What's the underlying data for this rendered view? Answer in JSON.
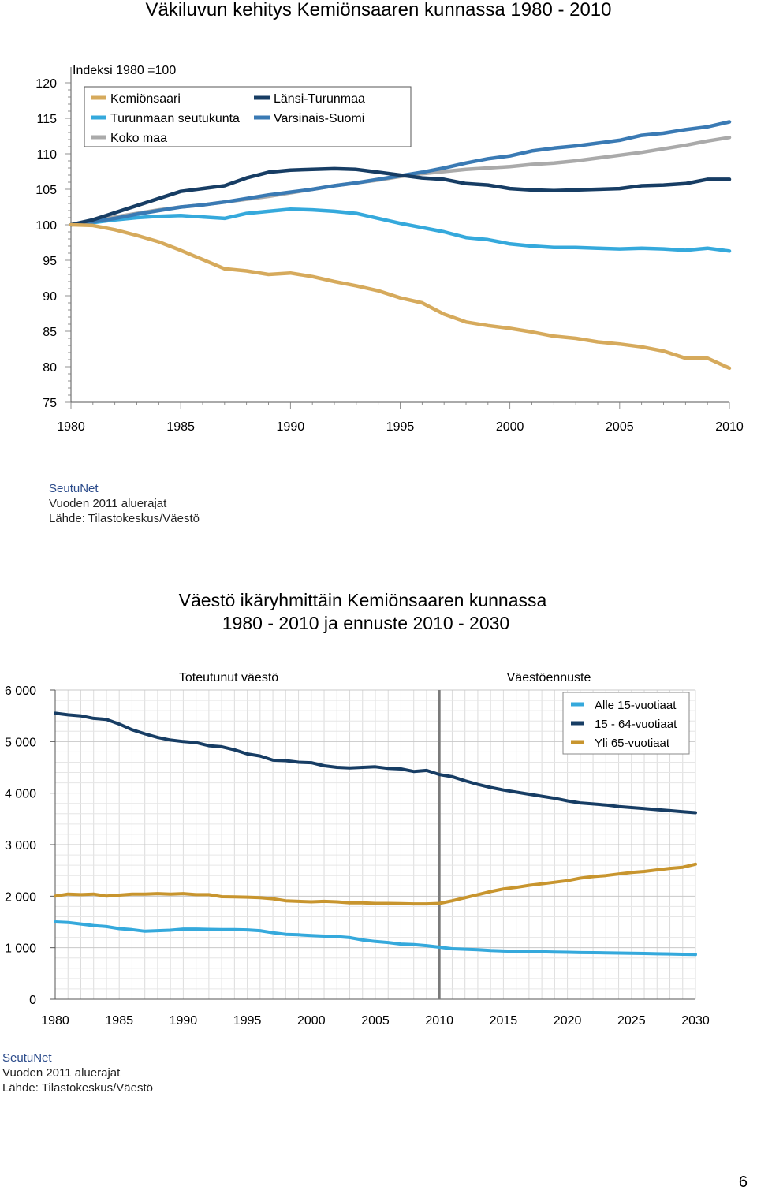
{
  "page_number": "6",
  "chart1": {
    "source": [
      "SeutuNet",
      "Vuoden 2011 aluerajat",
      "Lähde: Tilastokeskus/Väestö"
    ]
  },
  "chart2": {
    "source": [
      "SeutuNet",
      "Vuoden 2011 aluerajat",
      "Lähde: Tilastokeskus/Väestö"
    ]
  },
  "chart_data": [
    {
      "type": "line",
      "title": "Väkiluvun kehitys Kemiönsaaren kunnassa 1980 - 2010",
      "subtitle": "Indeksi 1980 =100",
      "xlim": [
        1980,
        2010
      ],
      "ylim": [
        75,
        120
      ],
      "x_ticks": [
        "1980",
        "1985",
        "1990",
        "1995",
        "2000",
        "2005",
        "2010"
      ],
      "y_ticks": [
        "75",
        "80",
        "85",
        "90",
        "95",
        "100",
        "105",
        "110",
        "115",
        "120"
      ],
      "grid": false,
      "legend_position": "top-left",
      "x": [
        1980,
        1981,
        1982,
        1983,
        1984,
        1985,
        1986,
        1987,
        1988,
        1989,
        1990,
        1991,
        1992,
        1993,
        1994,
        1995,
        1996,
        1997,
        1998,
        1999,
        2000,
        2001,
        2002,
        2003,
        2004,
        2005,
        2006,
        2007,
        2008,
        2009,
        2010
      ],
      "series": [
        {
          "name": "Kemiönsaari",
          "color": "#d6aa5c",
          "legend_col": 0,
          "legend_row": 0,
          "values": [
            100,
            99.9,
            99.3,
            98.5,
            97.6,
            96.4,
            95.1,
            93.8,
            93.5,
            93.0,
            93.2,
            92.7,
            92.0,
            91.4,
            90.7,
            89.7,
            89.0,
            87.4,
            86.3,
            85.8,
            85.4,
            84.9,
            84.3,
            84.0,
            83.5,
            83.2,
            82.8,
            82.2,
            81.2,
            81.2,
            79.8
          ]
        },
        {
          "name": "Turunmaan seutukunta",
          "color": "#35a9dc",
          "legend_col": 0,
          "legend_row": 1,
          "values": [
            100,
            100.3,
            100.7,
            101.0,
            101.2,
            101.3,
            101.1,
            100.9,
            101.6,
            101.9,
            102.2,
            102.1,
            101.9,
            101.6,
            100.9,
            100.2,
            99.6,
            99.0,
            98.2,
            97.9,
            97.3,
            97.0,
            96.8,
            96.8,
            96.7,
            96.6,
            96.7,
            96.6,
            96.4,
            96.7,
            96.3
          ]
        },
        {
          "name": "Koko maa",
          "color": "#aaaaaa",
          "legend_col": 0,
          "legend_row": 2,
          "values": [
            100,
            100.6,
            101.1,
            101.6,
            102.1,
            102.5,
            102.8,
            103.2,
            103.6,
            104.0,
            104.5,
            105.0,
            105.5,
            105.9,
            106.3,
            106.8,
            107.2,
            107.5,
            107.8,
            108.0,
            108.2,
            108.5,
            108.7,
            109.0,
            109.4,
            109.8,
            110.2,
            110.7,
            111.2,
            111.8,
            112.3
          ]
        },
        {
          "name": "Länsi-Turunmaa",
          "color": "#173d64",
          "legend_col": 1,
          "legend_row": 0,
          "values": [
            100,
            100.7,
            101.7,
            102.7,
            103.7,
            104.7,
            105.1,
            105.5,
            106.6,
            107.4,
            107.7,
            107.8,
            107.9,
            107.8,
            107.4,
            107.0,
            106.6,
            106.4,
            105.8,
            105.6,
            105.1,
            104.9,
            104.8,
            104.9,
            105.0,
            105.1,
            105.5,
            105.6,
            105.8,
            106.4,
            106.4
          ]
        },
        {
          "name": "Varsinais-Suomi",
          "color": "#3a7ab4",
          "legend_col": 1,
          "legend_row": 1,
          "values": [
            100,
            100.4,
            100.9,
            101.5,
            102.0,
            102.5,
            102.8,
            103.2,
            103.7,
            104.2,
            104.6,
            105.0,
            105.5,
            105.9,
            106.4,
            106.9,
            107.4,
            108.0,
            108.7,
            109.3,
            109.7,
            110.4,
            110.8,
            111.1,
            111.5,
            111.9,
            112.6,
            112.9,
            113.4,
            113.8,
            114.5
          ]
        }
      ]
    },
    {
      "type": "line",
      "title": "Väestö ikäryhmittäin Kemiönsaaren kunnassa",
      "subtitle": "1980 - 2010 ja ennuste 2010 - 2030",
      "annotations": [
        "Toteutunut väestö",
        "Väestöennuste"
      ],
      "divider_x": 2010,
      "xlim": [
        1980,
        2030
      ],
      "ylim": [
        0,
        6000
      ],
      "x_ticks": [
        "1980",
        "1985",
        "1990",
        "1995",
        "2000",
        "2005",
        "2010",
        "2015",
        "2020",
        "2025",
        "2030"
      ],
      "y_ticks": [
        "0",
        "1 000",
        "2 000",
        "3 000",
        "4 000",
        "5 000",
        "6 000"
      ],
      "grid": true,
      "legend_position": "top-right",
      "x": [
        1980,
        1981,
        1982,
        1983,
        1984,
        1985,
        1986,
        1987,
        1988,
        1989,
        1990,
        1991,
        1992,
        1993,
        1994,
        1995,
        1996,
        1997,
        1998,
        1999,
        2000,
        2001,
        2002,
        2003,
        2004,
        2005,
        2006,
        2007,
        2008,
        2009,
        2010,
        2011,
        2012,
        2013,
        2014,
        2015,
        2016,
        2017,
        2018,
        2019,
        2020,
        2021,
        2022,
        2023,
        2024,
        2025,
        2026,
        2027,
        2028,
        2029,
        2030
      ],
      "series": [
        {
          "name": "Alle 15-vuotiaat",
          "color": "#35a9dc",
          "values": [
            1500,
            1490,
            1460,
            1430,
            1410,
            1370,
            1350,
            1320,
            1330,
            1340,
            1360,
            1360,
            1355,
            1350,
            1350,
            1345,
            1330,
            1290,
            1260,
            1250,
            1235,
            1225,
            1215,
            1195,
            1150,
            1120,
            1100,
            1070,
            1060,
            1040,
            1010,
            980,
            970,
            960,
            945,
            935,
            930,
            925,
            920,
            915,
            910,
            905,
            903,
            900,
            895,
            892,
            888,
            882,
            878,
            872,
            868
          ]
        },
        {
          "name": "15 - 64-vuotiaat",
          "color": "#173d64",
          "values": [
            5550,
            5520,
            5500,
            5450,
            5430,
            5340,
            5230,
            5150,
            5080,
            5030,
            5000,
            4980,
            4920,
            4900,
            4840,
            4760,
            4720,
            4640,
            4630,
            4600,
            4590,
            4530,
            4500,
            4490,
            4500,
            4510,
            4480,
            4470,
            4420,
            4440,
            4360,
            4320,
            4240,
            4170,
            4110,
            4060,
            4020,
            3980,
            3940,
            3900,
            3850,
            3810,
            3790,
            3770,
            3740,
            3720,
            3700,
            3680,
            3660,
            3640,
            3620
          ]
        },
        {
          "name": "Yli 65-vuotiaat",
          "color": "#c8952e",
          "values": [
            2000,
            2040,
            2030,
            2040,
            2000,
            2020,
            2040,
            2040,
            2050,
            2040,
            2050,
            2030,
            2030,
            1990,
            1985,
            1980,
            1970,
            1950,
            1910,
            1900,
            1890,
            1900,
            1890,
            1870,
            1870,
            1860,
            1860,
            1855,
            1850,
            1850,
            1860,
            1910,
            1970,
            2030,
            2090,
            2140,
            2170,
            2210,
            2240,
            2270,
            2300,
            2350,
            2380,
            2400,
            2430,
            2460,
            2480,
            2510,
            2540,
            2560,
            2620
          ]
        }
      ]
    }
  ]
}
